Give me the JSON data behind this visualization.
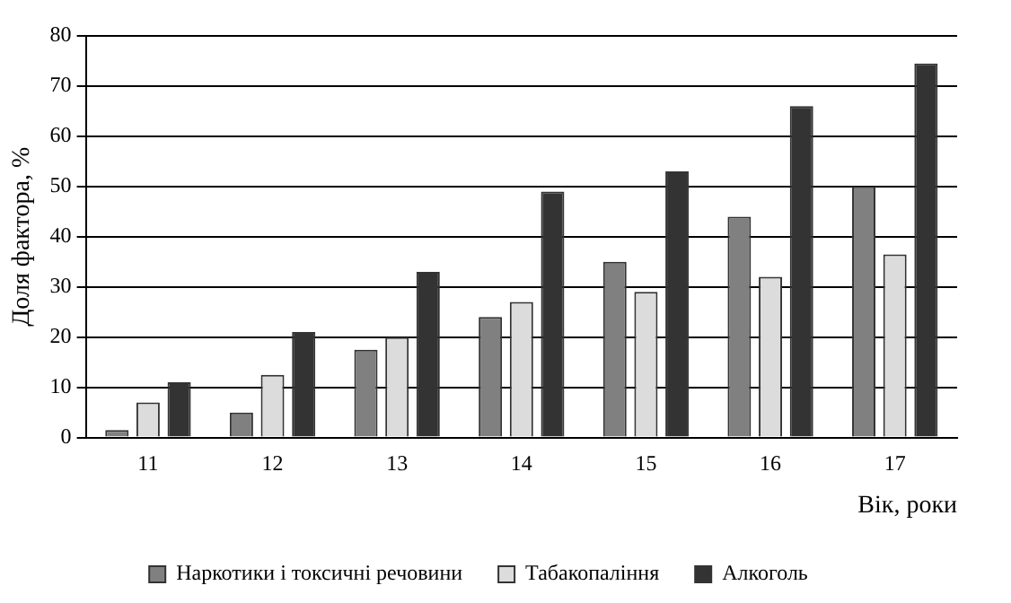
{
  "chart_data": {
    "type": "bar",
    "xlabel": "Вік, роки",
    "ylabel": "Доля фактора, %",
    "categories": [
      "11",
      "12",
      "13",
      "14",
      "15",
      "16",
      "17"
    ],
    "series": [
      {
        "name": "Наркотики і токсичні речовини",
        "color": "#808080",
        "values": [
          1.5,
          5,
          17.5,
          24,
          35,
          44,
          50
        ]
      },
      {
        "name": "Табакопаління",
        "color": "#dcdcdc",
        "values": [
          7,
          12.5,
          20,
          27,
          29,
          32,
          36.5
        ]
      },
      {
        "name": "Алкоголь",
        "color": "#333333",
        "values": [
          11,
          21,
          33,
          49,
          53,
          66,
          74.5
        ]
      }
    ],
    "ylim": [
      0,
      80
    ],
    "yticks": [
      0,
      10,
      20,
      30,
      40,
      50,
      60,
      70,
      80
    ],
    "grid": "y",
    "legend": "bottom"
  }
}
